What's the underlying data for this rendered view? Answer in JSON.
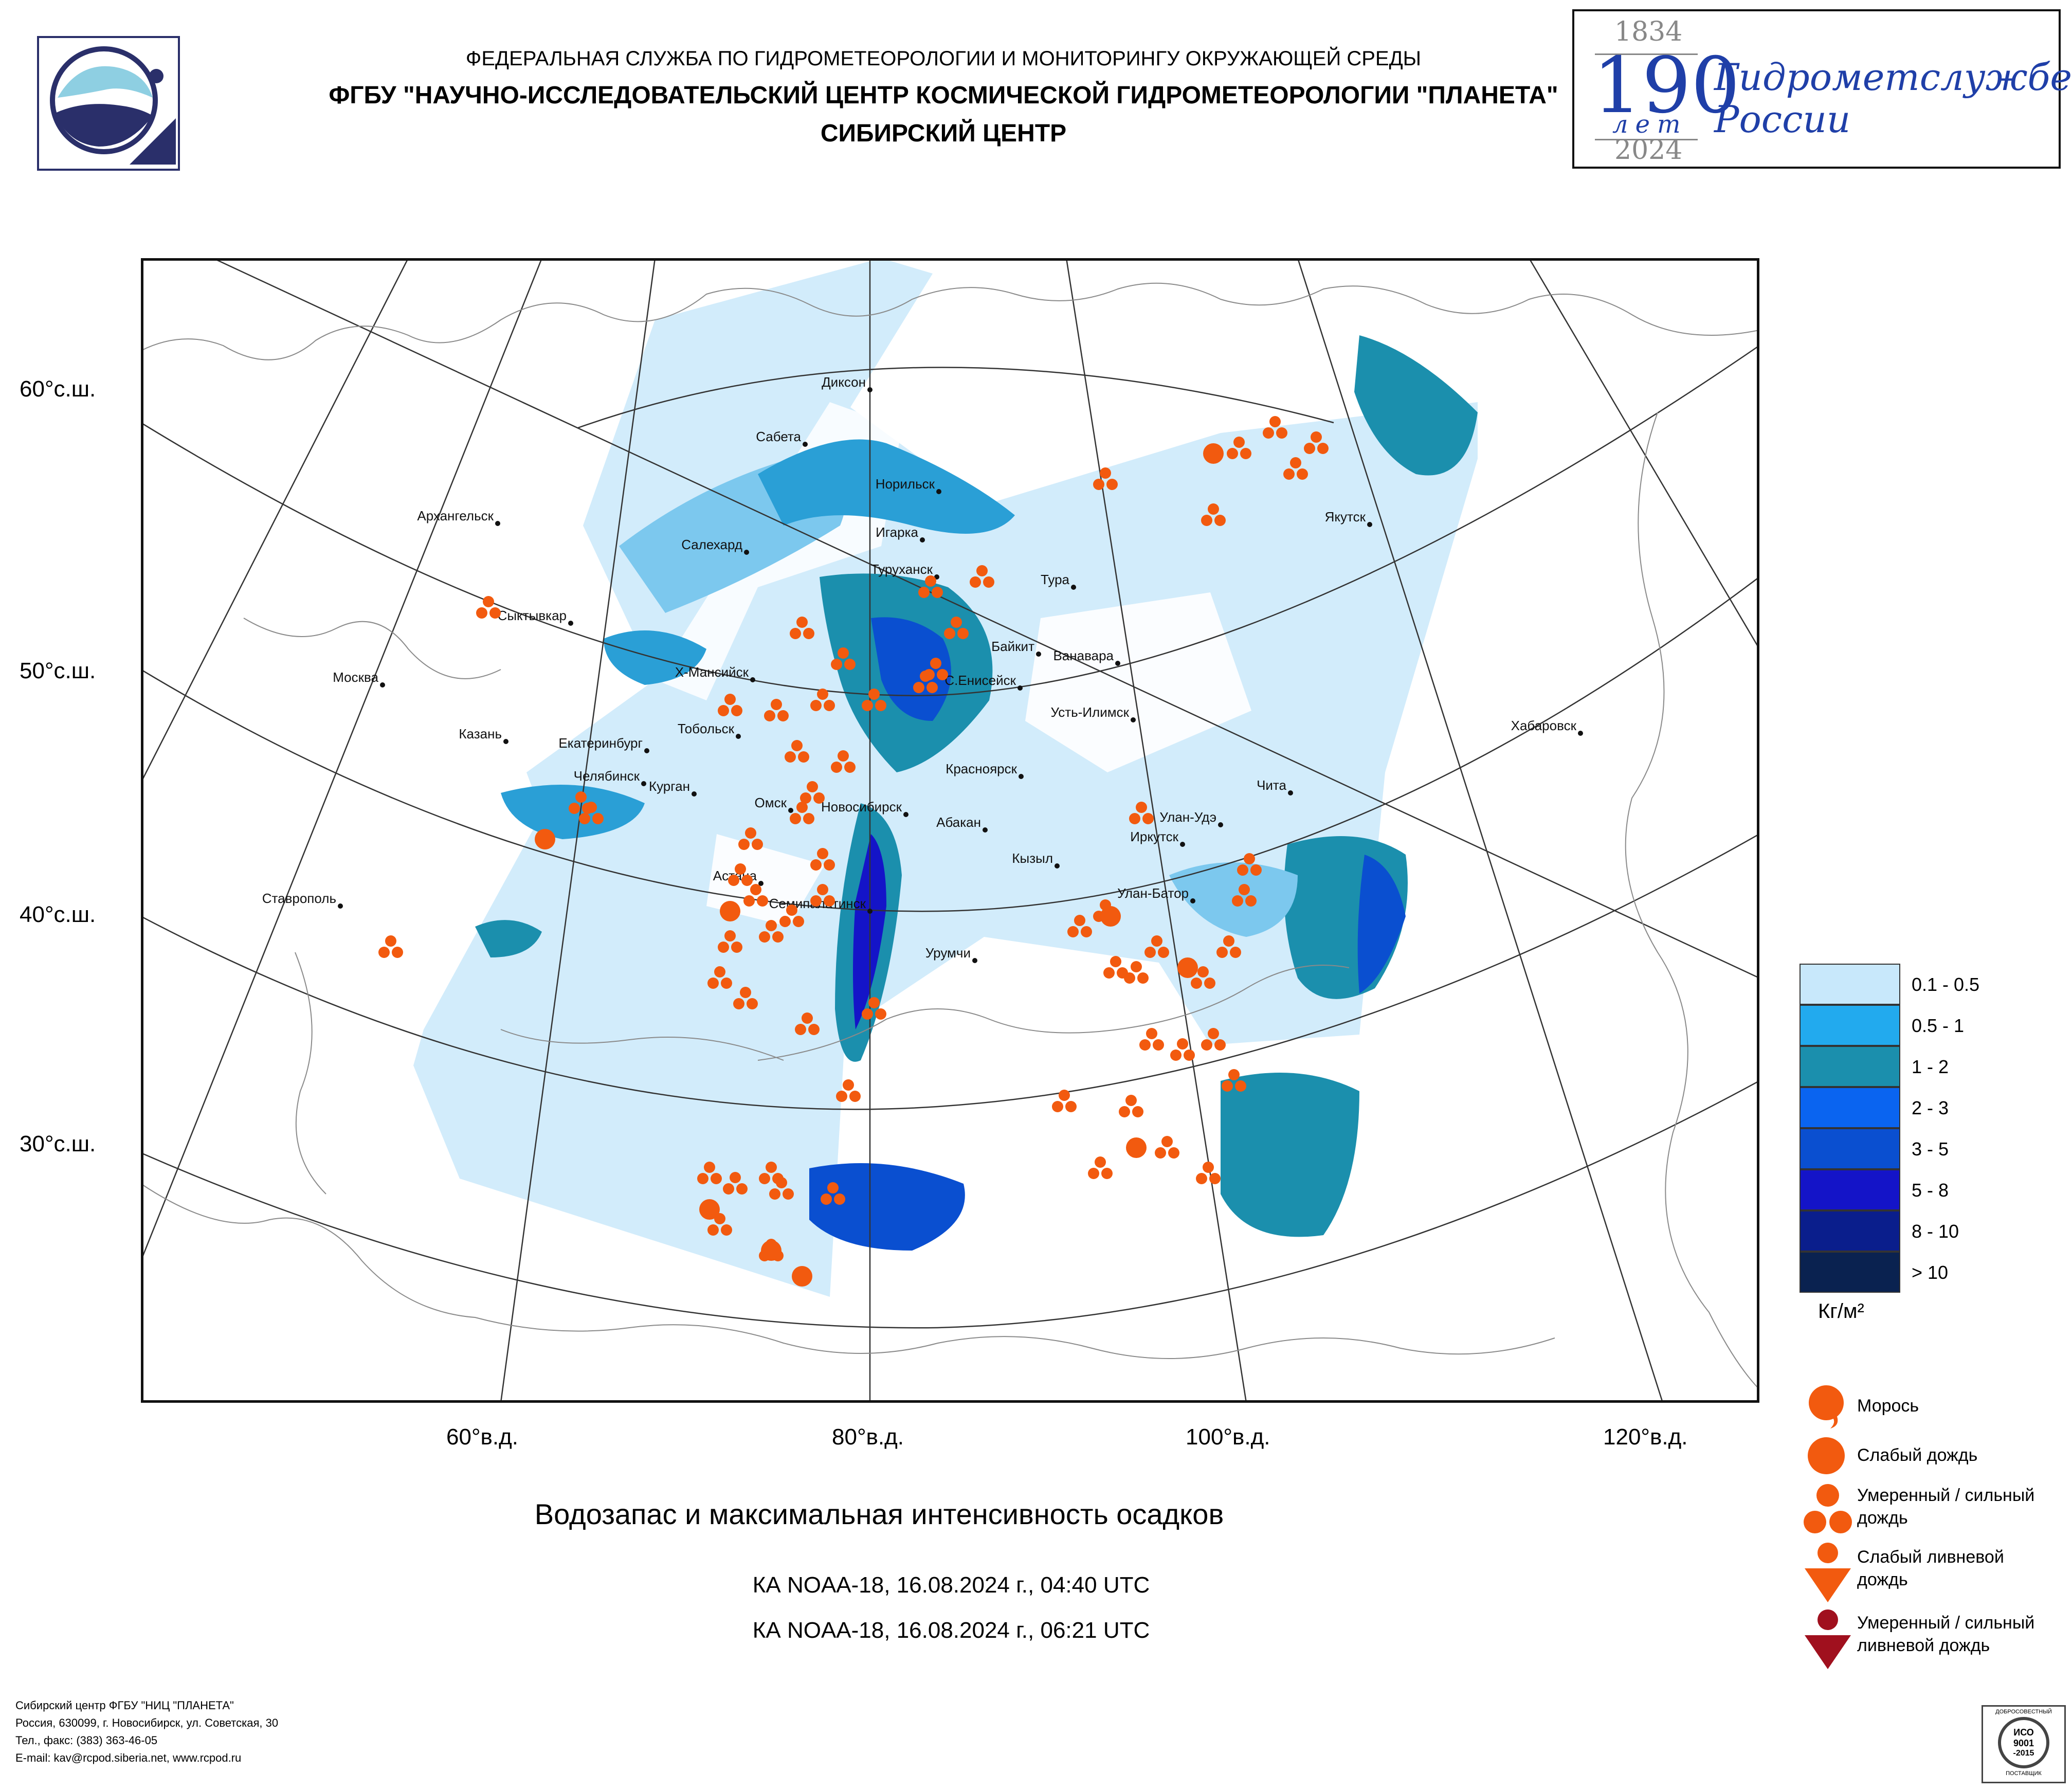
{
  "header": {
    "agency": "ФЕДЕРАЛЬНАЯ СЛУЖБА ПО ГИДРОМЕТЕОРОЛОГИИ И МОНИТОРИНГУ ОКРУЖАЮЩЕЙ СРЕДЫ",
    "organization": "ФГБУ \"НАУЧНО-ИССЛЕДОВАТЕЛЬСКИЙ ЦЕНТР КОСМИЧЕСКОЙ ГИДРОМЕТЕОРОЛОГИИ \"ПЛАНЕТА\"",
    "center": "СИБИРСКИЙ ЦЕНТР"
  },
  "anniversary": {
    "year_start": "1834",
    "number": "190",
    "years_word": "лет",
    "text_line1": "Гидрометслужбе",
    "text_line2": "России",
    "year_end": "2024"
  },
  "map": {
    "latitude_labels": [
      "60°с.ш.",
      "50°с.ш.",
      "40°с.ш.",
      "30°с.ш."
    ],
    "longitude_labels": [
      "60°в.д.",
      "80°в.д.",
      "100°в.д.",
      "120°в.д."
    ],
    "cities": [
      {
        "name": "Диксон"
      },
      {
        "name": "Сабета"
      },
      {
        "name": "Норильск"
      },
      {
        "name": "Игарка"
      },
      {
        "name": "Салехард"
      },
      {
        "name": "Архангельск"
      },
      {
        "name": "Туруханск"
      },
      {
        "name": "Тура"
      },
      {
        "name": "Якутск"
      },
      {
        "name": "Сыктывкар"
      },
      {
        "name": "Байкит"
      },
      {
        "name": "Ванавара"
      },
      {
        "name": "Москва"
      },
      {
        "name": "Х-Мансийск"
      },
      {
        "name": "С.Енисейск"
      },
      {
        "name": "Усть-Илимск"
      },
      {
        "name": "Казань"
      },
      {
        "name": "Тобольск"
      },
      {
        "name": "Хабаровск"
      },
      {
        "name": "Екатеринбург"
      },
      {
        "name": "Красноярск"
      },
      {
        "name": "Челябинск"
      },
      {
        "name": "Курган"
      },
      {
        "name": "Омск"
      },
      {
        "name": "Чита"
      },
      {
        "name": "Новосибирск"
      },
      {
        "name": "Абакан"
      },
      {
        "name": "Улан-Удэ"
      },
      {
        "name": "Иркутск"
      },
      {
        "name": "Кызыл"
      },
      {
        "name": "Астана"
      },
      {
        "name": "Ставрополь"
      },
      {
        "name": "Семипалатинск"
      },
      {
        "name": "Улан-Батор"
      },
      {
        "name": "Урумчи"
      }
    ]
  },
  "legend": {
    "classes": [
      {
        "label": "0.1 - 0.5",
        "color": "#c8e8fb"
      },
      {
        "label": "0.5 - 1",
        "color": "#22aaee"
      },
      {
        "label": "1 - 2",
        "color": "#1b8fad"
      },
      {
        "label": "2 - 3",
        "color": "#0a64f0"
      },
      {
        "label": "3 - 5",
        "color": "#0a4fd0"
      },
      {
        "label": "5 - 8",
        "color": "#1414c8"
      },
      {
        "label": "8 - 10",
        "color": "#0a1e8c"
      },
      {
        "label": "> 10",
        "color": "#0a2250"
      }
    ],
    "unit": "Кг/м²"
  },
  "symbols": [
    {
      "label": "Морось",
      "icon": "drizzle-icon",
      "color": "#f25a0f"
    },
    {
      "label": "Слабый дождь",
      "icon": "light-rain-icon",
      "color": "#f25a0f"
    },
    {
      "label": "Умеренный / сильный дождь",
      "icon": "moderate-rain-icon",
      "color": "#f25a0f"
    },
    {
      "label": "Слабый ливневой дождь",
      "icon": "light-shower-icon",
      "color": "#f25a0f"
    },
    {
      "label": "Умеренный / сильный ливневой дождь",
      "icon": "heavy-shower-icon",
      "color": "#a0101e"
    }
  ],
  "title": "Водозапас и максимальная интенсивность осадков",
  "passes": [
    "КА NOAA-18, 16.08.2024 г., 04:40 UTC",
    "КА NOAA-18, 16.08.2024 г., 06:21 UTC"
  ],
  "footer": {
    "line1": "Сибирский центр ФГБУ \"НИЦ \"ПЛАНЕТА\"",
    "line2": "Россия, 630099, г. Новосибирск, ул. Советская, 30",
    "line3": "Тел., факс: (383) 363-46-05",
    "line4": "E-mail: kav@rcpod.siberia.net, www.rcpod.ru"
  },
  "iso_badge": {
    "top": "ДОБРОСОВЕСТНЫЙ",
    "mid1": "ИСО",
    "mid2": "9001",
    "mid3": "-2015",
    "bottom": "ПОСТАВЩИК"
  }
}
